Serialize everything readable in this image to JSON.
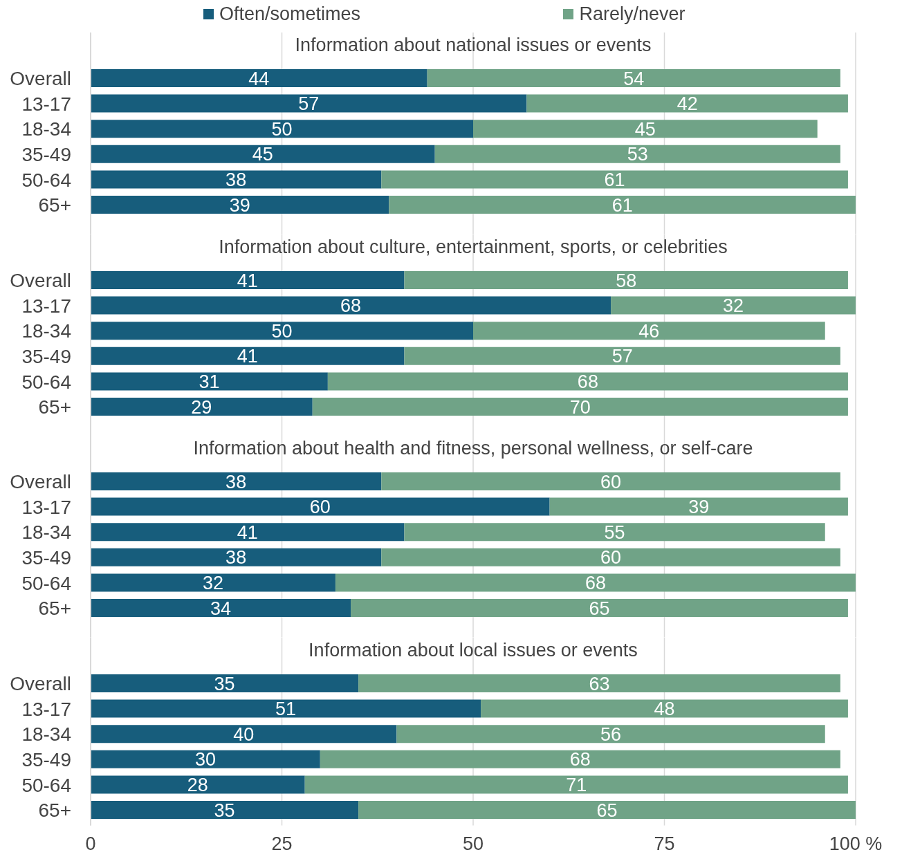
{
  "chart_data": [
    {
      "type": "bar",
      "orientation": "horizontal",
      "stacked": true,
      "title": "Information about national issues or events",
      "categories": [
        "Overall",
        "13-17",
        "18-34",
        "35-49",
        "50-64",
        "65+"
      ],
      "series": [
        {
          "name": "Often/sometimes",
          "color": "#175d7c",
          "values": [
            44,
            57,
            50,
            45,
            38,
            39
          ]
        },
        {
          "name": "Rarely/never",
          "color": "#70a387",
          "values": [
            54,
            42,
            45,
            53,
            61,
            61
          ]
        }
      ],
      "xlim": [
        0,
        100
      ],
      "xticks": [
        0,
        25,
        50,
        75,
        100
      ],
      "grid": "x",
      "legend": "top",
      "data_labels": true,
      "tick_labels": "y"
    },
    {
      "type": "bar",
      "orientation": "horizontal",
      "stacked": true,
      "title": "Information about culture, entertainment, sports, or celebrities",
      "categories": [
        "Overall",
        "13-17",
        "18-34",
        "35-49",
        "50-64",
        "65+"
      ],
      "series": [
        {
          "color": "#175d7c",
          "values": [
            41,
            68,
            50,
            41,
            31,
            29
          ]
        },
        {
          "color": "#70a387",
          "values": [
            58,
            32,
            46,
            57,
            68,
            70
          ]
        }
      ],
      "xlim": [
        0,
        100
      ],
      "xticks": [
        0,
        25,
        50,
        75,
        100
      ],
      "grid": "x",
      "data_labels": true,
      "tick_labels": "y"
    },
    {
      "type": "bar",
      "orientation": "horizontal",
      "stacked": true,
      "title": "Information about health and fitness, personal wellness, or self-care",
      "categories": [
        "Overall",
        "13-17",
        "18-34",
        "35-49",
        "50-64",
        "65+"
      ],
      "series": [
        {
          "color": "#175d7c",
          "values": [
            38,
            60,
            41,
            38,
            32,
            34
          ]
        },
        {
          "color": "#70a387",
          "values": [
            60,
            39,
            55,
            60,
            68,
            65
          ]
        }
      ],
      "xlim": [
        0,
        100
      ],
      "xticks": [
        0,
        25,
        50,
        75,
        100
      ],
      "grid": "x",
      "data_labels": true,
      "tick_labels": "y"
    },
    {
      "type": "bar",
      "orientation": "horizontal",
      "stacked": true,
      "title": "Information about local issues or events",
      "categories": [
        "Overall",
        "13-17",
        "18-34",
        "35-49",
        "50-64",
        "65+"
      ],
      "series": [
        {
          "color": "#175d7c",
          "values": [
            35,
            51,
            40,
            30,
            28,
            35
          ]
        },
        {
          "color": "#70a387",
          "values": [
            63,
            48,
            56,
            68,
            71,
            65
          ]
        }
      ],
      "xlim": [
        0,
        100
      ],
      "xticks": [
        0,
        25,
        50,
        75,
        {
          "value": 100,
          "label": "100 %"
        }
      ],
      "grid": "x",
      "data_labels": true
    }
  ]
}
